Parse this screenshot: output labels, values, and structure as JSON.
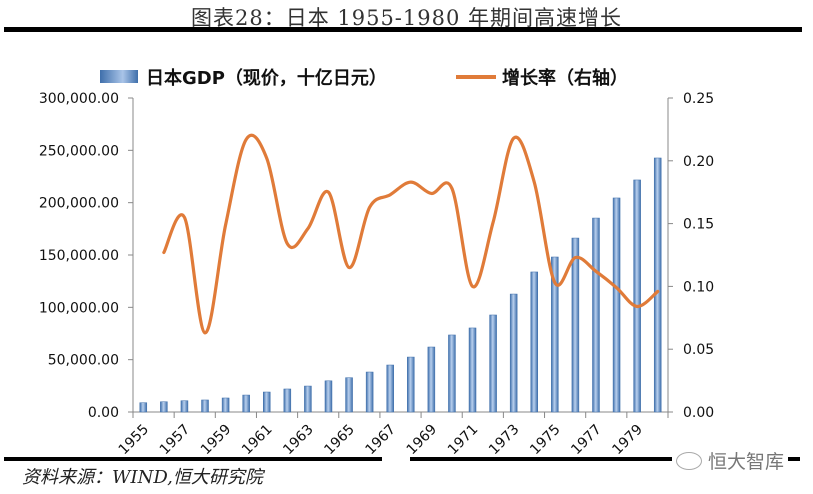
{
  "title": "图表28：日本 1955-1980 年期间高速增长",
  "source": "资料来源：WIND,恒大研究院",
  "watermark": "恒大智库",
  "colors": {
    "bar": "#4f81bd",
    "bar_light": "#b9d0ee",
    "line": "#e07b39",
    "axis": "#888888"
  },
  "chart_data": {
    "type": "bar+line",
    "title": "图表28：日本 1955-1980 年期间高速增长",
    "xlabel": "",
    "ylabel": "",
    "categories": [
      1955,
      1956,
      1957,
      1958,
      1959,
      1960,
      1961,
      1962,
      1963,
      1964,
      1965,
      1966,
      1967,
      1968,
      1969,
      1970,
      1971,
      1972,
      1973,
      1974,
      1975,
      1976,
      1977,
      1978,
      1979,
      1980
    ],
    "x_tick_labels": [
      "1955",
      "1957",
      "1959",
      "1961",
      "1963",
      "1965",
      "1967",
      "1969",
      "1971",
      "1973",
      "1975",
      "1977",
      "1979"
    ],
    "left_axis": {
      "ylim": [
        0,
        300000
      ],
      "ticks": [
        "0.00",
        "50,000.00",
        "100,000.00",
        "150,000.00",
        "200,000.00",
        "250,000.00",
        "300,000.00"
      ]
    },
    "right_axis": {
      "ylim": [
        0,
        0.25
      ],
      "ticks": [
        "0.00",
        "0.05",
        "0.10",
        "0.15",
        "0.20",
        "0.25"
      ]
    },
    "legend_position": "top",
    "grid": false,
    "series": [
      {
        "name": "日本GDP（现价，十亿日元）",
        "type": "bar",
        "axis": "left",
        "values": [
          8900,
          9800,
          10800,
          11500,
          13400,
          16200,
          19100,
          22000,
          24800,
          29800,
          32800,
          38200,
          44900,
          52500,
          62100,
          73600,
          80300,
          92700,
          112700,
          133800,
          148100,
          166200,
          185300,
          204500,
          221700,
          242700
        ]
      },
      {
        "name": "增长率（右轴）",
        "type": "line",
        "axis": "right",
        "values": [
          null,
          0.127,
          0.155,
          0.063,
          0.149,
          0.217,
          0.202,
          0.134,
          0.146,
          0.175,
          0.115,
          0.163,
          0.173,
          0.183,
          0.174,
          0.178,
          0.1,
          0.151,
          0.218,
          0.183,
          0.103,
          0.123,
          0.112,
          0.099,
          0.084,
          0.096
        ]
      }
    ]
  }
}
